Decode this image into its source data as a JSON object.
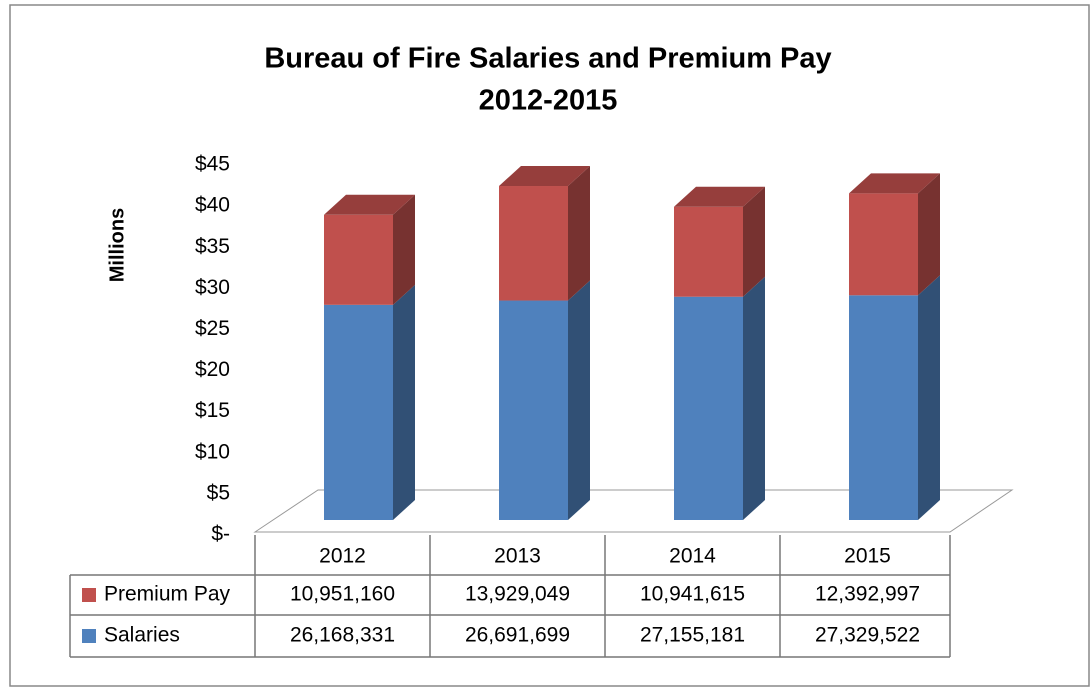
{
  "chart_data": {
    "type": "bar3d_stacked",
    "title": "Bureau of Fire Salaries and Premium Pay",
    "subtitle": "2012-2015",
    "y_label": "Millions",
    "categories": [
      "2012",
      "2013",
      "2014",
      "2015"
    ],
    "series": [
      {
        "name": "Premium Pay",
        "color": "#c0504d",
        "values": [
          10.95116,
          13.929049,
          10.941615,
          12.392997
        ],
        "value_labels": [
          "10,951,160",
          "13,929,049",
          "10,941,615",
          "12,392,997"
        ]
      },
      {
        "name": "Salaries",
        "color": "#4f81bd",
        "values": [
          26.168331,
          26.691699,
          27.155181,
          27.329522
        ],
        "value_labels": [
          "26,168,331",
          "26,691,699",
          "27,155,181",
          "27,329,522"
        ]
      }
    ],
    "ylim": [
      0,
      45
    ],
    "yticks": [
      {
        "value": 0,
        "label": "$-"
      },
      {
        "value": 5,
        "label": "$5"
      },
      {
        "value": 10,
        "label": "$10"
      },
      {
        "value": 15,
        "label": "$15"
      },
      {
        "value": 20,
        "label": "$20"
      },
      {
        "value": 25,
        "label": "$25"
      },
      {
        "value": 30,
        "label": "$30"
      },
      {
        "value": 35,
        "label": "$35"
      },
      {
        "value": 40,
        "label": "$40"
      },
      {
        "value": 45,
        "label": "$45"
      }
    ]
  }
}
